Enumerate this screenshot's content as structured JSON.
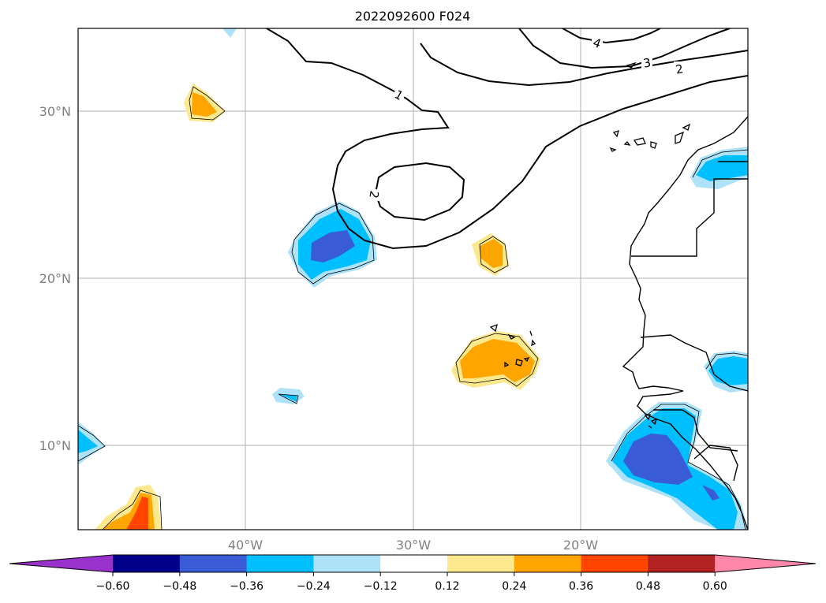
{
  "title": "2022092600 F024",
  "latitude_labels": [
    "30°N",
    "20°N",
    "10°N"
  ],
  "longitude_labels": [
    "40°W",
    "30°W",
    "20°W"
  ],
  "contour_labels": [
    "1",
    "2",
    "2",
    "3",
    "4"
  ],
  "colorbar": {
    "ticks": [
      "−0.60",
      "−0.48",
      "−0.36",
      "−0.24",
      "−0.12",
      "0.12",
      "0.24",
      "0.36",
      "0.48",
      "0.60"
    ],
    "colors": [
      "#9932cc",
      "#00008b",
      "#3a5bd6",
      "#00bfff",
      "#aee2f8",
      "#ffffff",
      "#fde98d",
      "#ffa500",
      "#ff4500",
      "#b22222",
      "#ff88aa"
    ]
  },
  "legend_colors": {
    "light_blue": "#aee2f8",
    "blue": "#00bfff",
    "dark_blue": "#3a5bd6",
    "yellow": "#fde98d",
    "orange": "#ffa500",
    "red": "#ff4500"
  }
}
